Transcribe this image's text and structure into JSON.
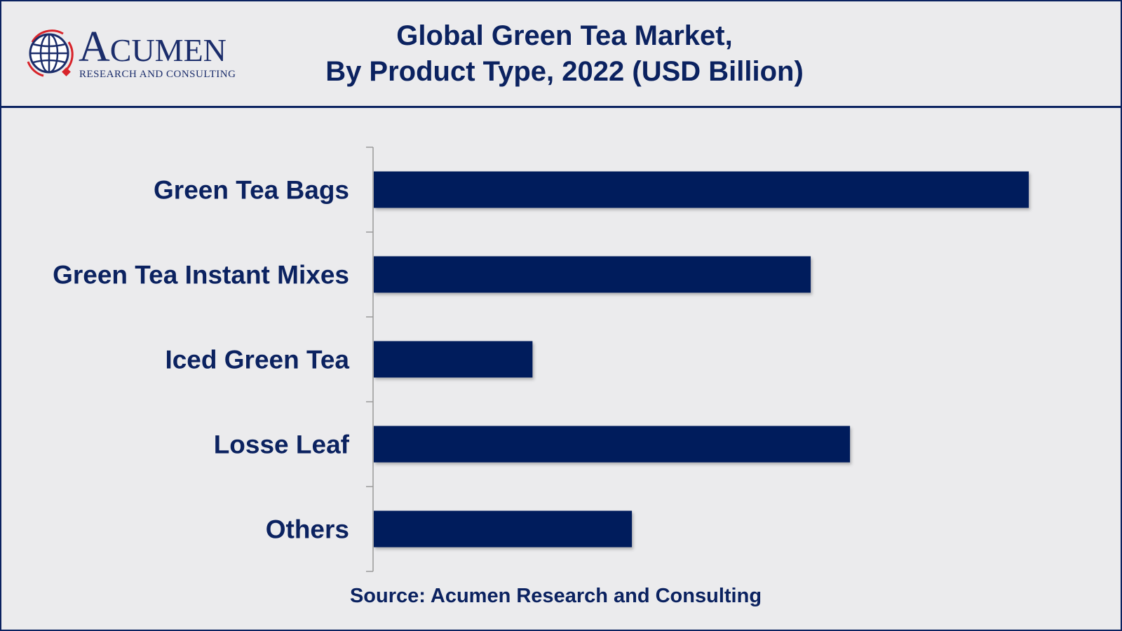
{
  "brand": {
    "name_first": "A",
    "name_rest": "CUMEN",
    "tagline": "RESEARCH AND CONSULTING"
  },
  "colors": {
    "primary": "#0b2260",
    "bar": "#021e5b",
    "background": "#ebebed",
    "axis": "#9a9a9a",
    "logo_red": "#d8232a"
  },
  "chart_data": {
    "type": "bar",
    "orientation": "horizontal",
    "title_lines": [
      "Global Green Tea Market,",
      "By Product Type, 2022 (USD Billion)"
    ],
    "categories": [
      "Green Tea Bags",
      "Green Tea Instant Mixes",
      "Iced Green Tea",
      "Losse Leaf",
      "Others"
    ],
    "values": [
      8.5,
      5.67,
      2.06,
      6.18,
      3.35
    ],
    "xlim": [
      0,
      9.0
    ],
    "xlabel": "",
    "ylabel": "",
    "grid": false,
    "legend": "none",
    "source": "Source: Acumen Research and Consulting"
  }
}
